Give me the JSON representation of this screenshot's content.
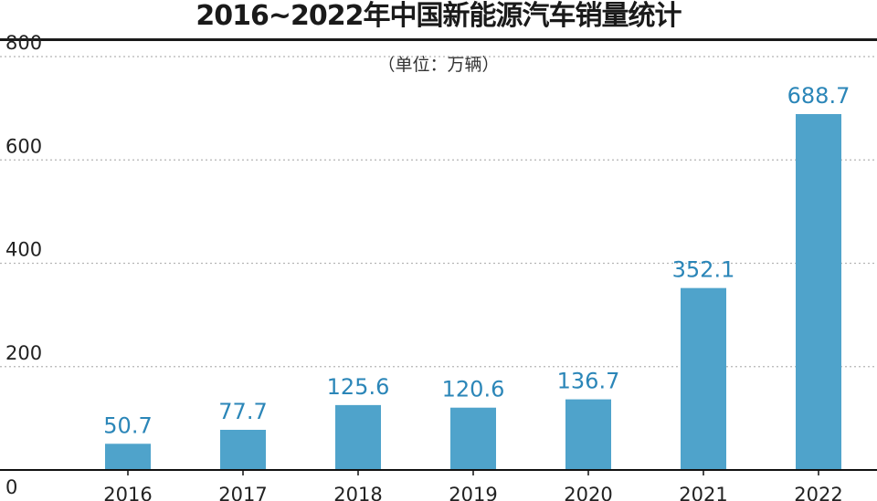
{
  "chart_data": {
    "type": "bar",
    "title": "2016~2022年中国新能源汽车销量统计",
    "subtitle": "（单位：万辆）",
    "categories": [
      "2016",
      "2017",
      "2018",
      "2019",
      "2020",
      "2021",
      "2022"
    ],
    "values": [
      50.7,
      77.7,
      125.6,
      120.6,
      136.7,
      352.1,
      688.7
    ],
    "value_labels": [
      "50.7",
      "77.7",
      "125.6",
      "120.6",
      "136.7",
      "352.1",
      "688.7"
    ],
    "yticks": [
      "0",
      "200",
      "400",
      "600",
      "800"
    ],
    "ylim": [
      0,
      800
    ],
    "grid": true,
    "legend": "none",
    "bar_color": "#4fa3cb",
    "label_color": "#2b86b8"
  }
}
